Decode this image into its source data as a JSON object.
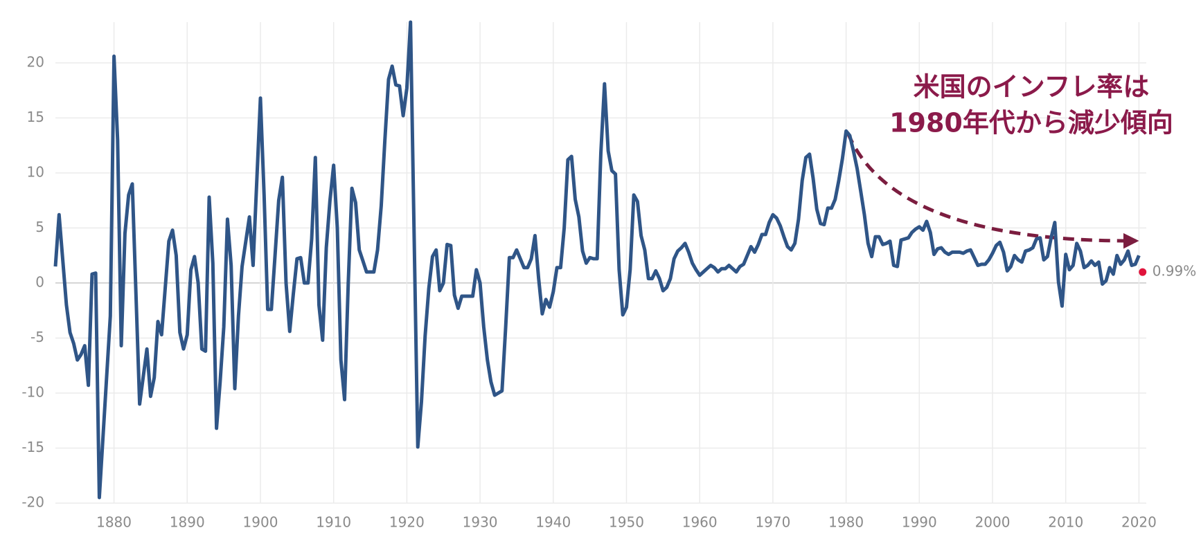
{
  "chart_data": {
    "type": "line",
    "annotation": [
      "米国のインフレ率は",
      "1980年代から減少傾向"
    ],
    "xlim": [
      1872,
      2021
    ],
    "xticks": [
      1880,
      1890,
      1900,
      1910,
      1920,
      1930,
      1940,
      1950,
      1960,
      1970,
      1980,
      1990,
      2000,
      2010,
      2020
    ],
    "ylim": [
      -20,
      23.7
    ],
    "yticks": [
      -20,
      -15,
      -10,
      -5,
      0,
      5,
      10,
      15,
      20
    ],
    "grid": true,
    "series": [
      {
        "color": "#2f5587",
        "x": [
          1872,
          1872.5,
          1873.5,
          1874,
          1874.5,
          1875,
          1875.5,
          1876,
          1876.5,
          1877,
          1877.5,
          1878,
          1879.5,
          1880,
          1880.5,
          1881,
          1881.5,
          1882,
          1882.5,
          1883.5,
          1884.5,
          1885,
          1885.5,
          1886,
          1886.5,
          1887.5,
          1888,
          1888.5,
          1889,
          1889.5,
          1890,
          1890.5,
          1891,
          1891.5,
          1892,
          1892.5,
          1893,
          1893.5,
          1894,
          1894.5,
          1895,
          1895.5,
          1896,
          1896.5,
          1897,
          1897.5,
          1898.5,
          1899,
          1900,
          1900.5,
          1901,
          1901.5,
          1902,
          1902.5,
          1903,
          1903.5,
          1904,
          1904.5,
          1905,
          1905.5,
          1906,
          1906.5,
          1907,
          1907.5,
          1908,
          1908.5,
          1909,
          1909.5,
          1910,
          1910.5,
          1911,
          1911.5,
          1912,
          1912.5,
          1913,
          1913.5,
          1914,
          1914.5,
          1915,
          1915.5,
          1916,
          1916.5,
          1917,
          1917.5,
          1918,
          1918.5,
          1919,
          1919.5,
          1920,
          1920.5,
          1921,
          1921.5,
          1922,
          1922.5,
          1923,
          1923.5,
          1924,
          1924.5,
          1925,
          1925.5,
          1926,
          1926.5,
          1927,
          1927.5,
          1928,
          1928.5,
          1929,
          1929.5,
          1930,
          1930.5,
          1931,
          1931.5,
          1932,
          1932.5,
          1933,
          1933.5,
          1934,
          1934.5,
          1935,
          1935.5,
          1936,
          1936.5,
          1937,
          1937.5,
          1938,
          1938.5,
          1939,
          1939.5,
          1940,
          1940.5,
          1941,
          1941.5,
          1942,
          1942.5,
          1943,
          1943.5,
          1944,
          1944.5,
          1945,
          1945.5,
          1946,
          1946.5,
          1947,
          1947.5,
          1948,
          1948.5,
          1949,
          1949.5,
          1950,
          1950.5,
          1951,
          1951.5,
          1952,
          1952.5,
          1953,
          1953.5,
          1954,
          1954.5,
          1955,
          1955.5,
          1956,
          1956.5,
          1957,
          1957.5,
          1958,
          1958.5,
          1959,
          1959.5,
          1960,
          1960.5,
          1961,
          1961.5,
          1962,
          1962.5,
          1963,
          1963.5,
          1964,
          1964.5,
          1965,
          1965.5,
          1966,
          1966.5,
          1967,
          1967.5,
          1968,
          1968.5,
          1969,
          1969.5,
          1970,
          1970.5,
          1971,
          1971.5,
          1972,
          1972.5,
          1973,
          1973.5,
          1974,
          1974.5,
          1975,
          1975.5,
          1976,
          1976.5,
          1977,
          1977.5,
          1978,
          1978.5,
          1979,
          1979.5,
          1980,
          1980.5,
          1981,
          1981.5,
          1982,
          1982.5,
          1983,
          1983.5,
          1984,
          1984.5,
          1985,
          1985.5,
          1986,
          1986.5,
          1987,
          1987.5,
          1988,
          1988.5,
          1989,
          1989.5,
          1990,
          1990.5,
          1991,
          1991.5,
          1992,
          1992.5,
          1993,
          1993.5,
          1994,
          1994.5,
          1995,
          1995.5,
          1996,
          1996.5,
          1997,
          1997.5,
          1998,
          1998.5,
          1999,
          1999.5,
          2000,
          2000.5,
          2001,
          2001.5,
          2002,
          2002.5,
          2003,
          2003.5,
          2004,
          2004.5,
          2005,
          2005.5,
          2006,
          2006.5,
          2007,
          2007.5,
          2008,
          2008.5,
          2009,
          2009.5,
          2010,
          2010.5,
          2011,
          2011.5,
          2012,
          2012.5,
          2013,
          2013.5,
          2014,
          2014.5,
          2015,
          2015.5,
          2016,
          2016.5,
          2017,
          2017.5,
          2018,
          2018.5,
          2019,
          2019.5,
          2020
        ],
        "values": [
          1.5,
          6.2,
          -2,
          -4.5,
          -5.5,
          -7,
          -6.5,
          -5.7,
          -9.3,
          0.8,
          0.9,
          -19.5,
          -3,
          20.6,
          13,
          -5.7,
          4.5,
          8,
          9,
          -11,
          -6,
          -10.3,
          -8.6,
          -3.5,
          -4.7,
          3.8,
          4.8,
          2.5,
          -4.5,
          -6,
          -4.7,
          1.2,
          2.4,
          0,
          -6,
          -6.2,
          7.8,
          1.8,
          -13.2,
          -9,
          -4,
          5.8,
          1.6,
          -9.6,
          -3,
          1.5,
          6,
          1.6,
          16.8,
          8,
          -2.4,
          -2.4,
          2.5,
          7.5,
          9.6,
          0,
          -4.4,
          -1,
          2.2,
          2.3,
          0,
          0,
          4,
          11.4,
          -2,
          -5.2,
          3.2,
          7.5,
          10.7,
          5,
          -7,
          -10.6,
          0,
          8.6,
          7.3,
          3,
          2,
          1,
          1,
          1,
          3,
          7,
          13,
          18.5,
          19.7,
          18,
          17.9,
          15.2,
          17.7,
          23.7,
          4,
          -14.9,
          -10.8,
          -4.8,
          -0.5,
          2.4,
          3,
          -0.7,
          0,
          3.5,
          3.4,
          -1.1,
          -2.3,
          -1.2,
          -1.2,
          -1.2,
          -1.2,
          1.2,
          0,
          -4,
          -7,
          -9,
          -10.2,
          -10,
          -9.8,
          -4,
          2.3,
          2.3,
          3,
          2.2,
          1.4,
          1.4,
          2.2,
          4.3,
          0.4,
          -2.8,
          -1.5,
          -2.2,
          -0.8,
          1.4,
          1.4,
          5,
          11.2,
          11.5,
          7.6,
          6,
          2.9,
          1.8,
          2.3,
          2.2,
          2.2,
          11.8,
          18.1,
          12,
          10.2,
          9.9,
          1.2,
          -2.9,
          -2.2,
          1.2,
          8,
          7.4,
          4.3,
          3,
          0.4,
          0.4,
          1.1,
          0.4,
          -0.7,
          -0.4,
          0.4,
          2.2,
          2.9,
          3.2,
          3.6,
          2.8,
          1.8,
          1.2,
          0.7,
          1,
          1.3,
          1.6,
          1.4,
          1,
          1.3,
          1.3,
          1.6,
          1.3,
          1,
          1.5,
          1.7,
          2.5,
          3.3,
          2.8,
          3.5,
          4.4,
          4.4,
          5.5,
          6.2,
          5.9,
          5.2,
          4.2,
          3.3,
          3,
          3.6,
          5.8,
          9.3,
          11.4,
          11.7,
          9.5,
          6.7,
          5.4,
          5.3,
          6.8,
          6.8,
          7.6,
          9.3,
          11.3,
          13.8,
          13.4,
          12,
          10.4,
          8.3,
          6.2,
          3.6,
          2.4,
          4.2,
          4.2,
          3.5,
          3.6,
          3.8,
          1.6,
          1.5,
          3.9,
          4,
          4.1,
          4.6,
          4.9,
          5.1,
          4.8,
          5.6,
          4.6,
          2.6,
          3.1,
          3.2,
          2.8,
          2.6,
          2.8,
          2.8,
          2.8,
          2.7,
          2.9,
          3,
          2.3,
          1.6,
          1.7,
          1.7,
          2.1,
          2.7,
          3.4,
          3.7,
          2.8,
          1.1,
          1.5,
          2.5,
          2.1,
          1.9,
          2.9,
          3,
          3.2,
          4,
          4.1,
          2.1,
          2.4,
          4.1,
          5.5,
          0.1,
          -2.1,
          2.6,
          1.2,
          1.6,
          3.6,
          2.9,
          1.4,
          1.6,
          2,
          1.6,
          1.9,
          -0.1,
          0.2,
          1.4,
          0.8,
          2.5,
          1.7,
          2.1,
          2.9,
          1.6,
          1.7,
          2.5
        ]
      }
    ],
    "end_point": {
      "x": 2020.5,
      "value": 0.99,
      "label": "0.99%",
      "color": "#e0143c"
    }
  }
}
